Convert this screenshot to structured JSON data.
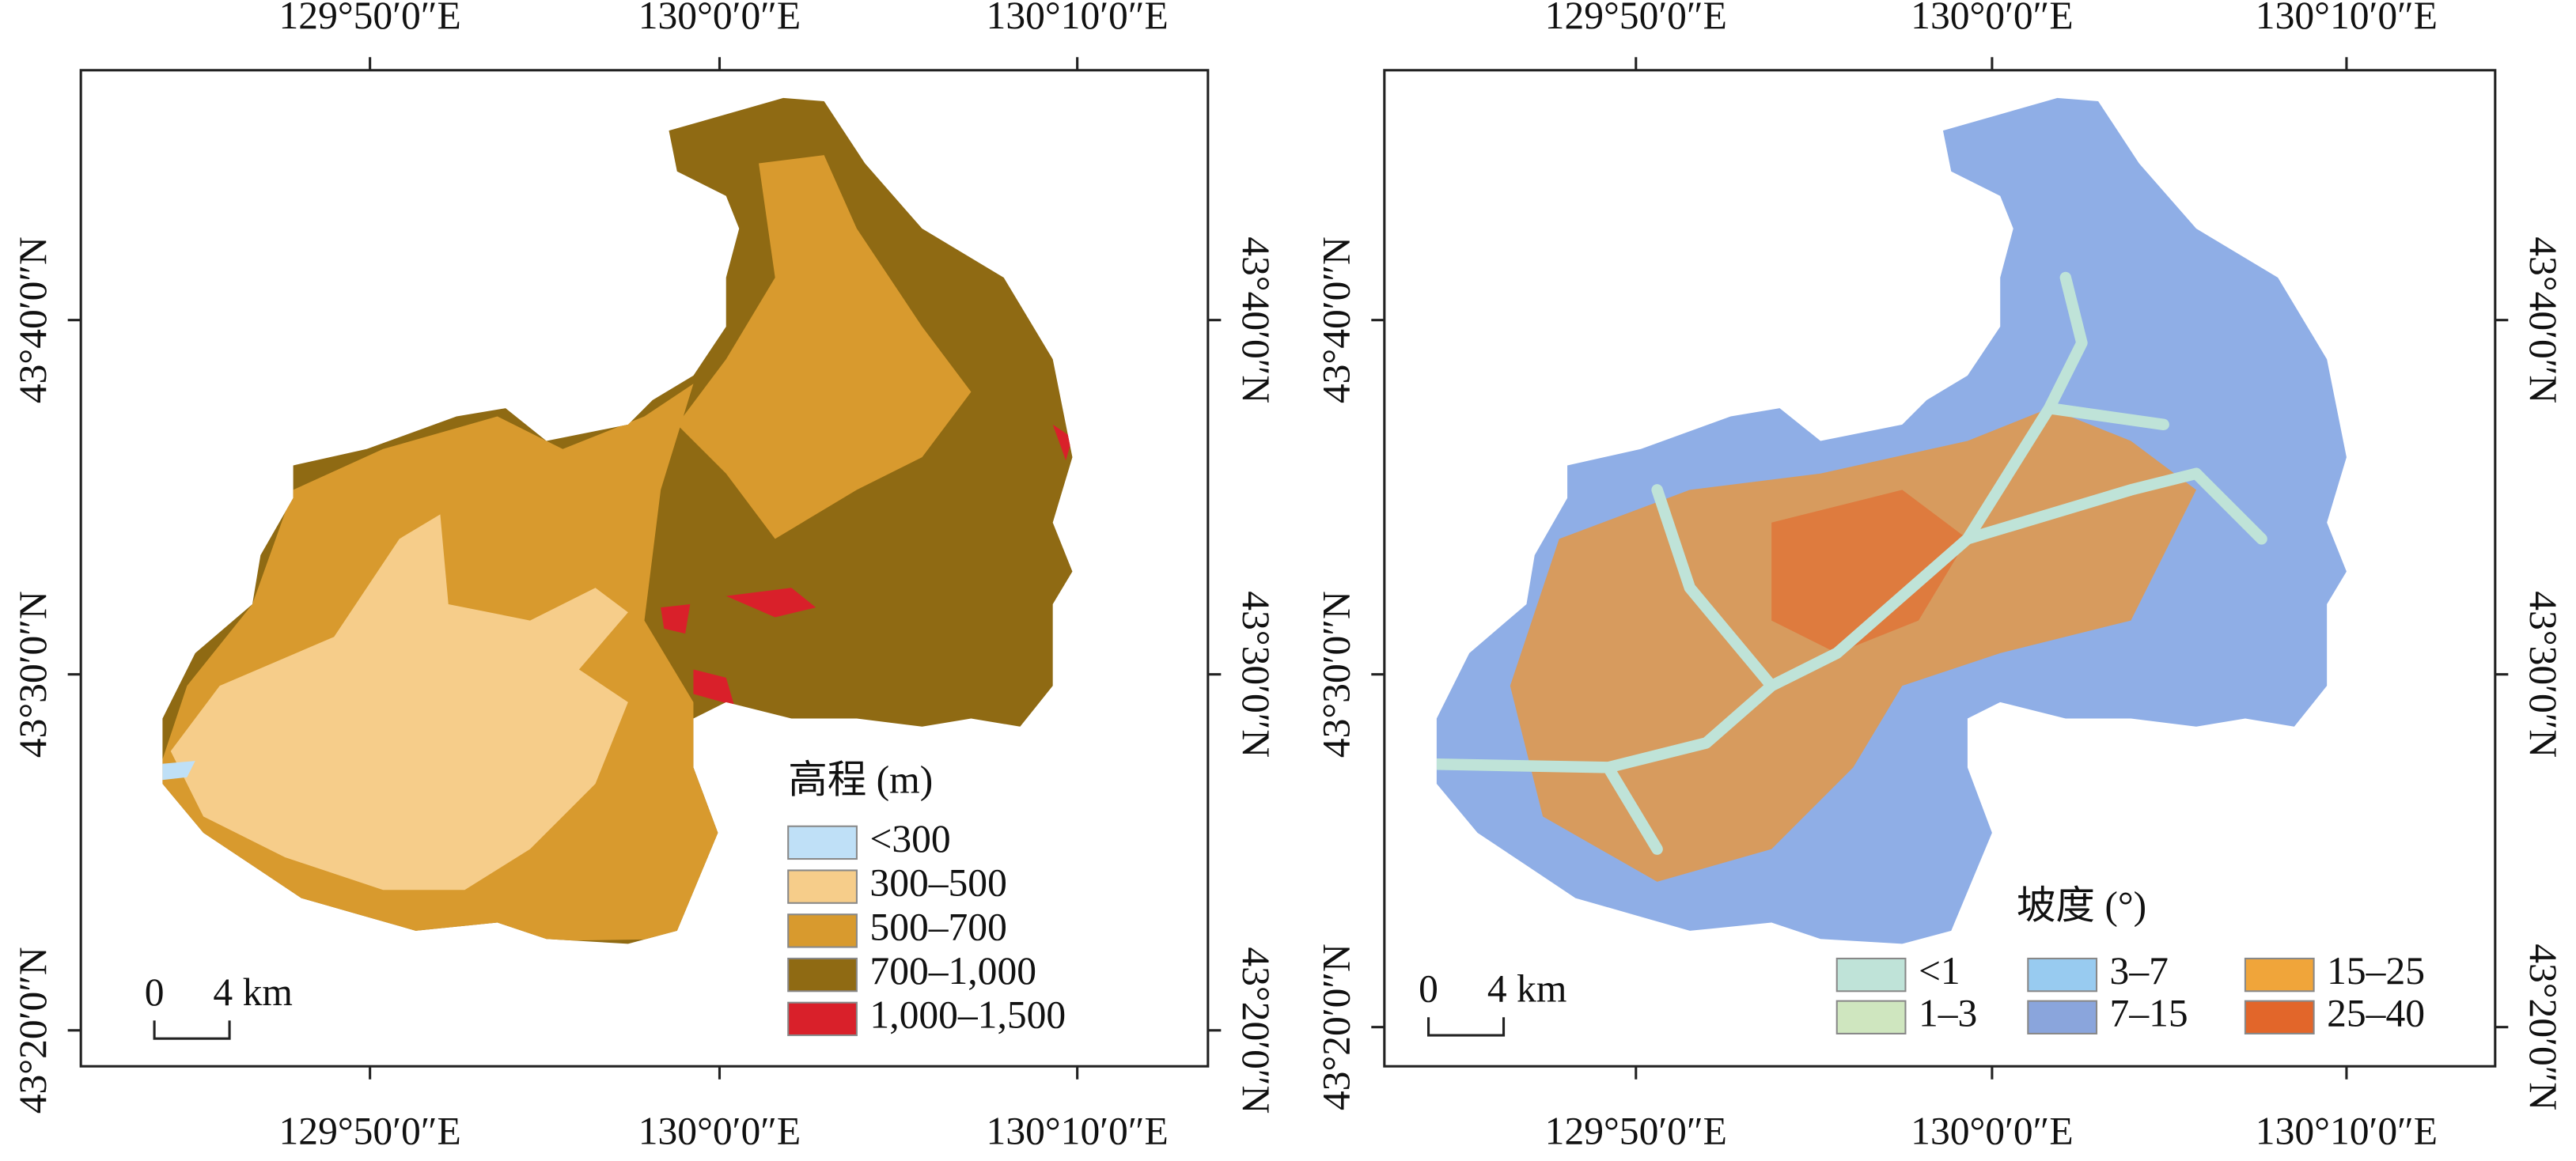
{
  "maps": [
    {
      "x_labels": [
        "129°50′0″E",
        "130°0′0″E",
        "130°10′0″E"
      ],
      "y_labels": [
        "43°40′0″N",
        "43°30′0″N",
        "43°20′0″N"
      ],
      "legend": {
        "title": "高程 (m)",
        "items": [
          {
            "label": "<300",
            "color": "#bfe0f7"
          },
          {
            "label": "300–500",
            "color": "#f6cd8a"
          },
          {
            "label": "500–700",
            "color": "#d89a2e"
          },
          {
            "label": "700–1,000",
            "color": "#8f6a13"
          },
          {
            "label": "1,000–1,500",
            "color": "#d9202a"
          }
        ]
      },
      "scale_bar": {
        "zero": "0",
        "label": "4 km"
      }
    },
    {
      "x_labels": [
        "129°50′0″E",
        "130°0′0″E",
        "130°10′0″E"
      ],
      "y_labels": [
        "43°40′0″N",
        "43°30′0″N",
        "43°20′0″N"
      ],
      "legend": {
        "title": "坡度 (°)",
        "items": [
          {
            "label": "<1",
            "color": "#bfe3d8"
          },
          {
            "label": "1–3",
            "color": "#cfe6bf"
          },
          {
            "label": "3–7",
            "color": "#98cbf0"
          },
          {
            "label": "7–15",
            "color": "#8aa5dc"
          },
          {
            "label": "15–25",
            "color": "#f0a53a"
          },
          {
            "label": "25–40",
            "color": "#e2662a"
          }
        ]
      },
      "scale_bar": {
        "zero": "0",
        "label": "4 km"
      }
    }
  ]
}
